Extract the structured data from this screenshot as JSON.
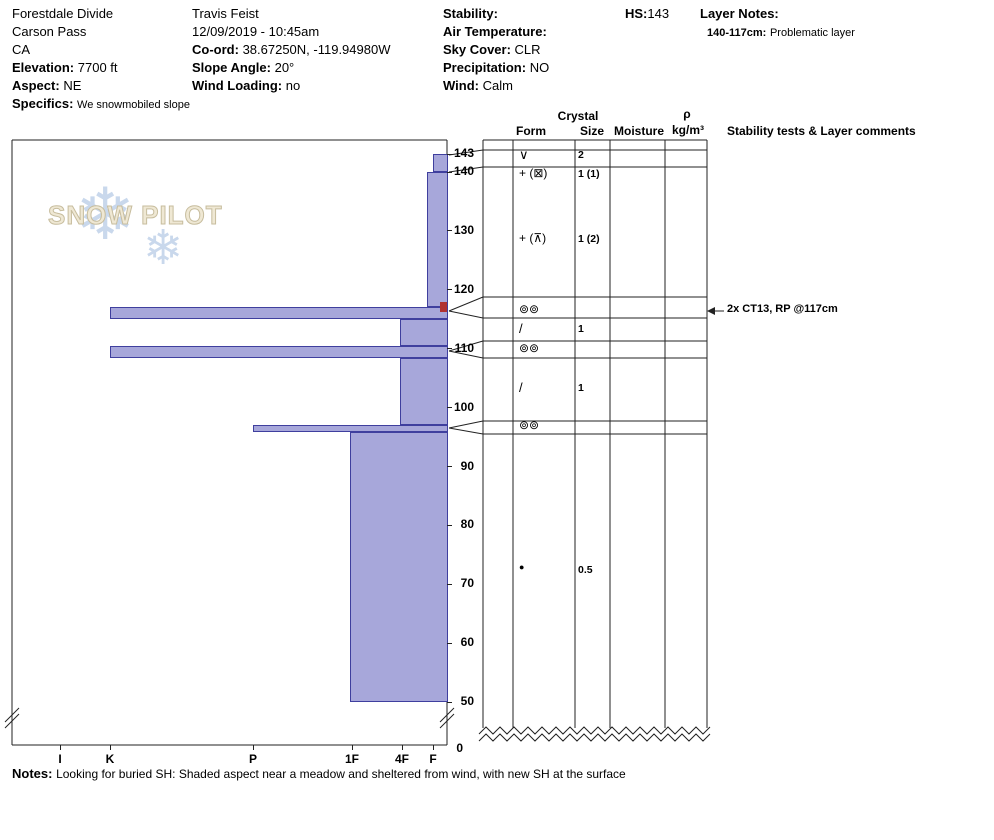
{
  "header": {
    "location": {
      "name": "Forestdale Divide",
      "region": "Carson Pass",
      "state": "CA",
      "elevation_label": "Elevation:",
      "elevation_value": "7700 ft",
      "aspect_label": "Aspect:",
      "aspect_value": "NE",
      "specifics_label": "Specifics:",
      "specifics_value": "We snowmobiled slope"
    },
    "observer": {
      "name": "Travis Feist",
      "datetime": "12/09/2019 - 10:45am",
      "coord_label": "Co-ord:",
      "coord_value": "38.67250N, -119.94980W",
      "slope_angle_label": "Slope Angle:",
      "slope_angle_value": "20°",
      "wind_loading_label": "Wind Loading:",
      "wind_loading_value": "no"
    },
    "conditions": {
      "stability_label": "Stability:",
      "stability_value": "",
      "air_temp_label": "Air Temperature:",
      "air_temp_value": "",
      "sky_cover_label": "Sky Cover:",
      "sky_cover_value": "CLR",
      "precip_label": "Precipitation:",
      "precip_value": "NO",
      "wind_label": "Wind:",
      "wind_value": "Calm"
    },
    "hs_label": "HS:",
    "hs_value": "143",
    "layer_notes_label": "Layer Notes:",
    "layer_note_range": "140-117cm:",
    "layer_note_text": "Problematic layer"
  },
  "watermark": {
    "text": "SNOW PILOT",
    "flake": "❄"
  },
  "table_headers": {
    "crystal": "Crystal",
    "form": "Form",
    "size": "Size",
    "moisture": "Moisture",
    "rho": "ρ",
    "rho_units": "kg/m³",
    "stability": "Stability tests & Layer comments"
  },
  "chart_data": {
    "type": "bar",
    "subtype": "snowpit-hardness-profile",
    "orientation": "horizontal bars by depth, hardness increases to the left",
    "title": "Snow profile - Forestdale Divide",
    "hs_cm": 143,
    "depth_ticks": [
      143,
      140,
      130,
      120,
      110,
      100,
      90,
      80,
      70,
      60,
      50
    ],
    "zero_label": "0",
    "depth_axis_break": "zigzag break between 50 cm and 0 cm",
    "hardness_ticks": [
      "I",
      "K",
      "P",
      "1F",
      "4F",
      "F"
    ],
    "layers": [
      {
        "top_cm": 143,
        "bottom_cm": 140,
        "hardness": "F",
        "hx": 1.0,
        "form": "SH (∨)",
        "size_mm": "2"
      },
      {
        "top_cm": 140,
        "bottom_cm": 117,
        "hardness": "F+",
        "hx": 1.2,
        "form": "PP + (⊠) / + (⊼)",
        "size_mm": "1 (1), 1 (2)"
      },
      {
        "top_cm": 117,
        "bottom_cm": 115,
        "hardness": "K",
        "hx": 5.0,
        "form": "crust ⊚⊚",
        "size_mm": ""
      },
      {
        "top_cm": 115,
        "bottom_cm": 110.5,
        "hardness": "4F",
        "hx": 2.05,
        "form": "FC /",
        "size_mm": "1"
      },
      {
        "top_cm": 110.5,
        "bottom_cm": 108.5,
        "hardness": "K",
        "hx": 5.0,
        "form": "crust ⊚⊚",
        "size_mm": ""
      },
      {
        "top_cm": 108.5,
        "bottom_cm": 97,
        "hardness": "4F",
        "hx": 2.05,
        "form": "FC /",
        "size_mm": "1"
      },
      {
        "top_cm": 97,
        "bottom_cm": 95.8,
        "hardness": "P",
        "hx": 4.0,
        "form": "crust ⊚⊚",
        "size_mm": ""
      },
      {
        "top_cm": 95.8,
        "bottom_cm": 50,
        "hardness": "1F",
        "hx": 3.02,
        "form": "RG ●",
        "size_mm": "0.5"
      }
    ],
    "grain_rows": [
      {
        "form": "∨",
        "size": "2"
      },
      {
        "form": "+ (⊠)",
        "size": "1 (1)"
      },
      {
        "form": "+ (⊼)",
        "size": "1 (2)"
      },
      {
        "form": "⊚⊚",
        "size": ""
      },
      {
        "form": "/",
        "size": "1"
      },
      {
        "form": "⊚⊚",
        "size": ""
      },
      {
        "form": "/",
        "size": "1"
      },
      {
        "form": "⊚⊚",
        "size": ""
      },
      {
        "form": "●",
        "size": "0.5"
      }
    ],
    "tests": [
      {
        "text": "2x CT13, RP @117cm",
        "depth_cm": 117
      }
    ]
  },
  "notes": {
    "label": "Notes:",
    "text": "Looking for buried SH: Shaded aspect near a meadow and sheltered from wind, with new SH at the surface"
  },
  "colors": {
    "bar_fill": "#a7a7da",
    "bar_border": "#3f3f9e",
    "failure_marker": "#b03232",
    "line": "#222222",
    "watermark_text": "#efe8d4",
    "watermark_flake": "#c9d8ec"
  }
}
